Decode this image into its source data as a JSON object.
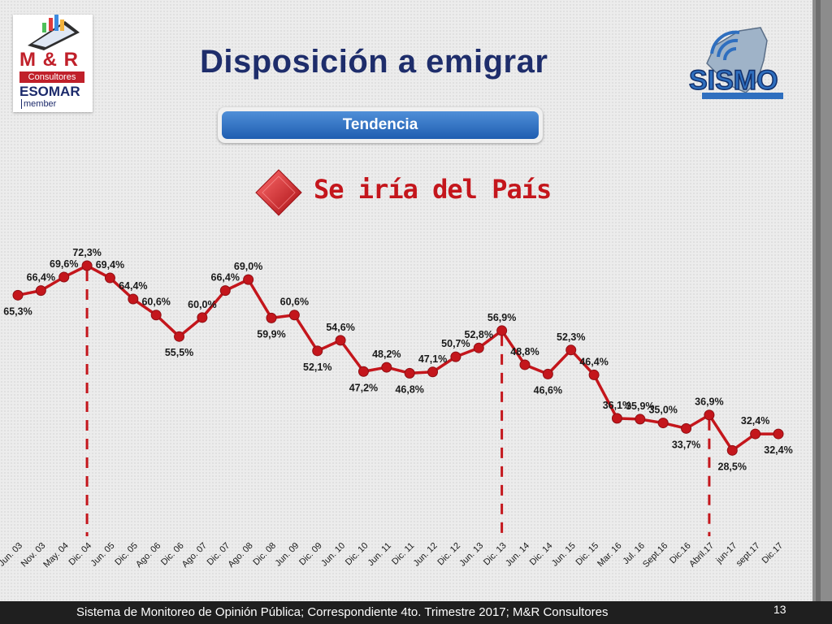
{
  "title": "Disposición a emigrar",
  "tab_label": "Tendencia",
  "subtitle": "Se iría del País",
  "logo_left": {
    "brand": "M & R",
    "sub": "Consultores",
    "esomar": "ESOMAR",
    "member": "member"
  },
  "logo_right": {
    "name": "SISMO"
  },
  "footer": {
    "text": "Sistema de Monitoreo de Opinión Pública; Correspondiente 4to. Trimestre 2017; M&R Consultores",
    "page": "13"
  },
  "colors": {
    "line": "#c4161c",
    "title": "#1e2d6b",
    "subtitle": "#c4161c"
  },
  "chart_data": {
    "type": "line",
    "categories": [
      "Jun. 03",
      "Nov. 03",
      "May. 04",
      "Dic. 04",
      "Jun. 05",
      "Dic. 05",
      "Ago. 06",
      "Dic. 06",
      "Ago. 07",
      "Dic. 07",
      "Ago. 08",
      "Dic. 08",
      "Jun. 09",
      "Dic. 09",
      "Jun. 10",
      "Dic. 10",
      "Jun. 11",
      "Dic. 11",
      "Jun. 12",
      "Dic. 12",
      "Jun. 13",
      "Dic. 13",
      "Jun. 14",
      "Dic. 14",
      "Jun. 15",
      "Dic. 15",
      "Mar. 16",
      "Jul. 16",
      "Sept.16",
      "Dic.16",
      "Abril.17",
      "jun-17",
      "sept.17",
      "Dic.17"
    ],
    "values": [
      65.3,
      66.4,
      69.6,
      72.3,
      69.4,
      64.4,
      60.6,
      55.5,
      60.0,
      66.4,
      69.0,
      59.9,
      60.6,
      52.1,
      54.6,
      47.2,
      48.2,
      46.8,
      47.1,
      50.7,
      52.8,
      56.9,
      48.8,
      46.6,
      52.3,
      46.4,
      36.1,
      35.9,
      35.0,
      33.7,
      36.9,
      28.5,
      32.4,
      32.4
    ],
    "labels": [
      "65,3%",
      "66,4%",
      "69,6%",
      "72,3%",
      "69,4%",
      "64,4%",
      "60,6%",
      "55,5%",
      "60,0%",
      "66,4%",
      "69,0%",
      "59,9%",
      "60,6%",
      "52,1%",
      "54,6%",
      "47,2%",
      "48,2%",
      "46,8%",
      "47,1%",
      "50,7%",
      "52,8%",
      "56,9%",
      "48,8%",
      "46,6%",
      "52,3%",
      "46,4%",
      "36,1%",
      "35,9%",
      "35,0%",
      "33,7%",
      "36,9%",
      "28,5%",
      "32,4%",
      "32,4%"
    ],
    "highlight_categories": [
      "Dic. 04",
      "Dic. 13",
      "Abril.17"
    ]
  }
}
